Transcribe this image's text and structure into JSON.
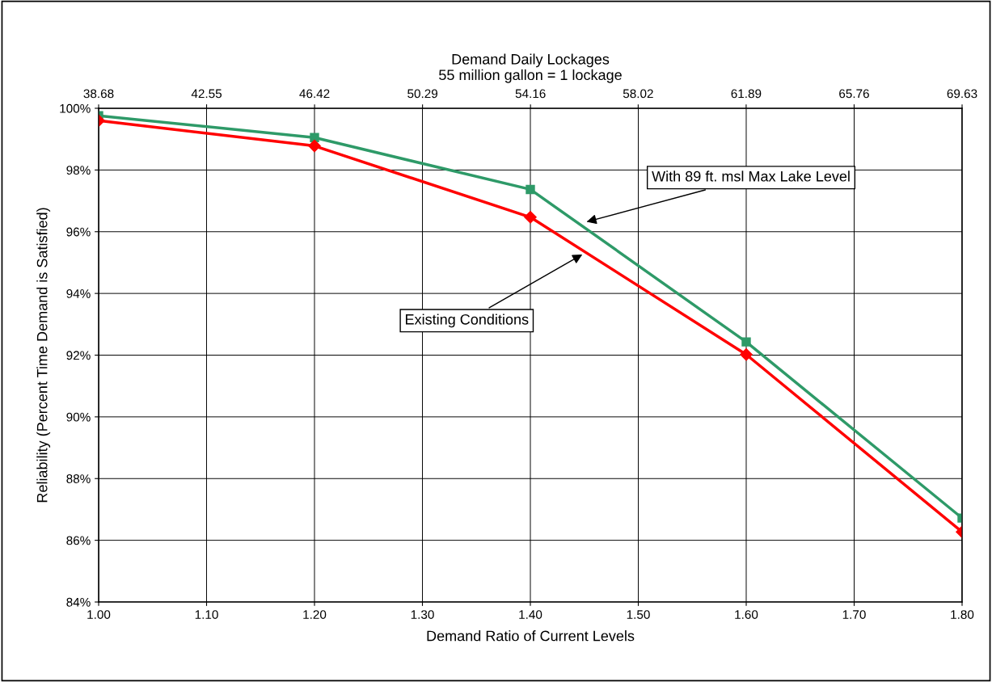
{
  "chart_data": {
    "type": "line",
    "x": [
      1.0,
      1.2,
      1.4,
      1.6,
      1.8
    ],
    "series": [
      {
        "color": "#2e9a68",
        "marker": "square",
        "values": [
          99.76,
          99.05,
          97.37,
          92.43,
          86.72
        ]
      },
      {
        "color": "#ff0000",
        "marker": "diamond",
        "values": [
          99.6,
          98.78,
          96.47,
          92.02,
          86.27
        ]
      }
    ],
    "xlabel": "Demand Ratio of Current Levels",
    "ylabel": "Reliability (Percent Time Demand is Satisfied)",
    "x2label": "Demand Daily Lockages\n55 million gallon = 1 lockage",
    "xlim": [
      1.0,
      1.8
    ],
    "xticks": [
      {
        "value": 1.0,
        "label": "1.00"
      },
      {
        "value": 1.1,
        "label": "1.10"
      },
      {
        "value": 1.2,
        "label": "1.20"
      },
      {
        "value": 1.3,
        "label": "1.30"
      },
      {
        "value": 1.4,
        "label": "1.40"
      },
      {
        "value": 1.5,
        "label": "1.50"
      },
      {
        "value": 1.6,
        "label": "1.60"
      },
      {
        "value": 1.7,
        "label": "1.70"
      },
      {
        "value": 1.8,
        "label": "1.80"
      }
    ],
    "x2lim": [
      38.68,
      69.63
    ],
    "x2ticks": [
      38.68,
      {
        "value": 42.55,
        "label": "42.55"
      },
      46.42,
      {
        "value": 50.29,
        "label": "50.29"
      },
      54.16,
      58.02,
      61.89,
      65.76,
      69.63
    ],
    "ylim": [
      84,
      100
    ],
    "yticks": [
      {
        "value": 84,
        "label": "84%"
      },
      {
        "value": 86,
        "label": "86%"
      },
      {
        "value": 88,
        "label": "88%"
      },
      {
        "value": 90,
        "label": "90%"
      },
      {
        "value": 92,
        "label": "92%"
      },
      {
        "value": 94,
        "label": "94%"
      },
      {
        "value": 96,
        "label": "96%"
      },
      {
        "value": 98,
        "label": "98%"
      },
      {
        "value": 100,
        "label": "100%"
      }
    ],
    "grid": true,
    "annotations": [
      {
        "text": "With 89 ft. msl Max Lake Level",
        "x": 1.45,
        "y": 96.3
      },
      {
        "text": "Existing Conditions",
        "x": 1.45,
        "y": 95.3
      }
    ]
  }
}
